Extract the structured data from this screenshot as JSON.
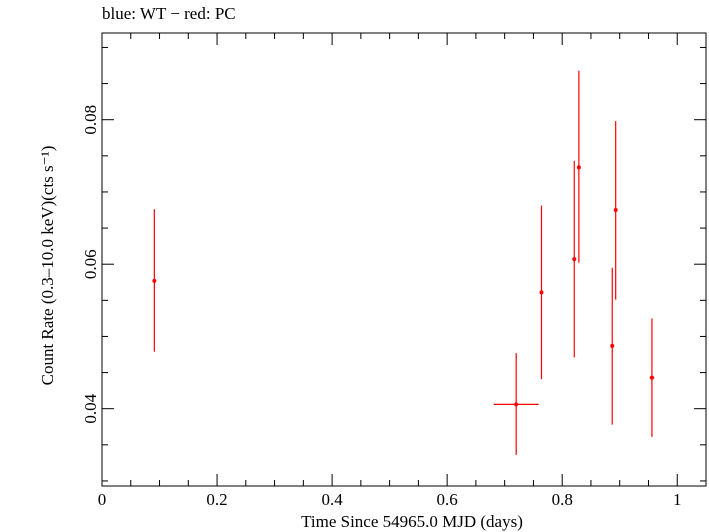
{
  "header_text": "blue: WT − red: PC",
  "chart_data": {
    "type": "scatter",
    "title": "blue: WT − red: PC",
    "xlabel": "Time Since 54965.0 MJD (days)",
    "ylabel": "Count Rate (0.3–10.0 keV)(cts s⁻¹)",
    "xlim": [
      0,
      1.05
    ],
    "ylim": [
      0.0293,
      0.092
    ],
    "x_ticks": [
      0,
      0.2,
      0.4,
      0.6,
      0.8,
      1
    ],
    "x_tick_labels": [
      "0",
      "0.2",
      "0.4",
      "0.6",
      "0.8",
      "1"
    ],
    "y_ticks": [
      0.04,
      0.06,
      0.08
    ],
    "y_tick_labels": [
      "0.04",
      "0.06",
      "0.08"
    ],
    "grid": false,
    "series": [
      {
        "name": "PC",
        "color": "#ff0000",
        "points": [
          {
            "x": 0.091,
            "y": 0.0577,
            "xerr": 0.001,
            "ylo": 0.0479,
            "yhi": 0.0676
          },
          {
            "x": 0.72,
            "y": 0.0406,
            "xerr": 0.039,
            "ylo": 0.0336,
            "yhi": 0.0477
          },
          {
            "x": 0.764,
            "y": 0.0561,
            "xerr": 0.002,
            "ylo": 0.0441,
            "yhi": 0.0681
          },
          {
            "x": 0.821,
            "y": 0.0607,
            "xerr": 0.002,
            "ylo": 0.0471,
            "yhi": 0.0743
          },
          {
            "x": 0.829,
            "y": 0.0734,
            "xerr": 0.002,
            "ylo": 0.0602,
            "yhi": 0.0868
          },
          {
            "x": 0.887,
            "y": 0.0487,
            "xerr": 0.002,
            "ylo": 0.0378,
            "yhi": 0.0595
          },
          {
            "x": 0.893,
            "y": 0.0675,
            "xerr": 0.002,
            "ylo": 0.0551,
            "yhi": 0.0798
          },
          {
            "x": 0.956,
            "y": 0.0443,
            "xerr": 0.004,
            "ylo": 0.0361,
            "yhi": 0.0525
          }
        ]
      }
    ]
  }
}
